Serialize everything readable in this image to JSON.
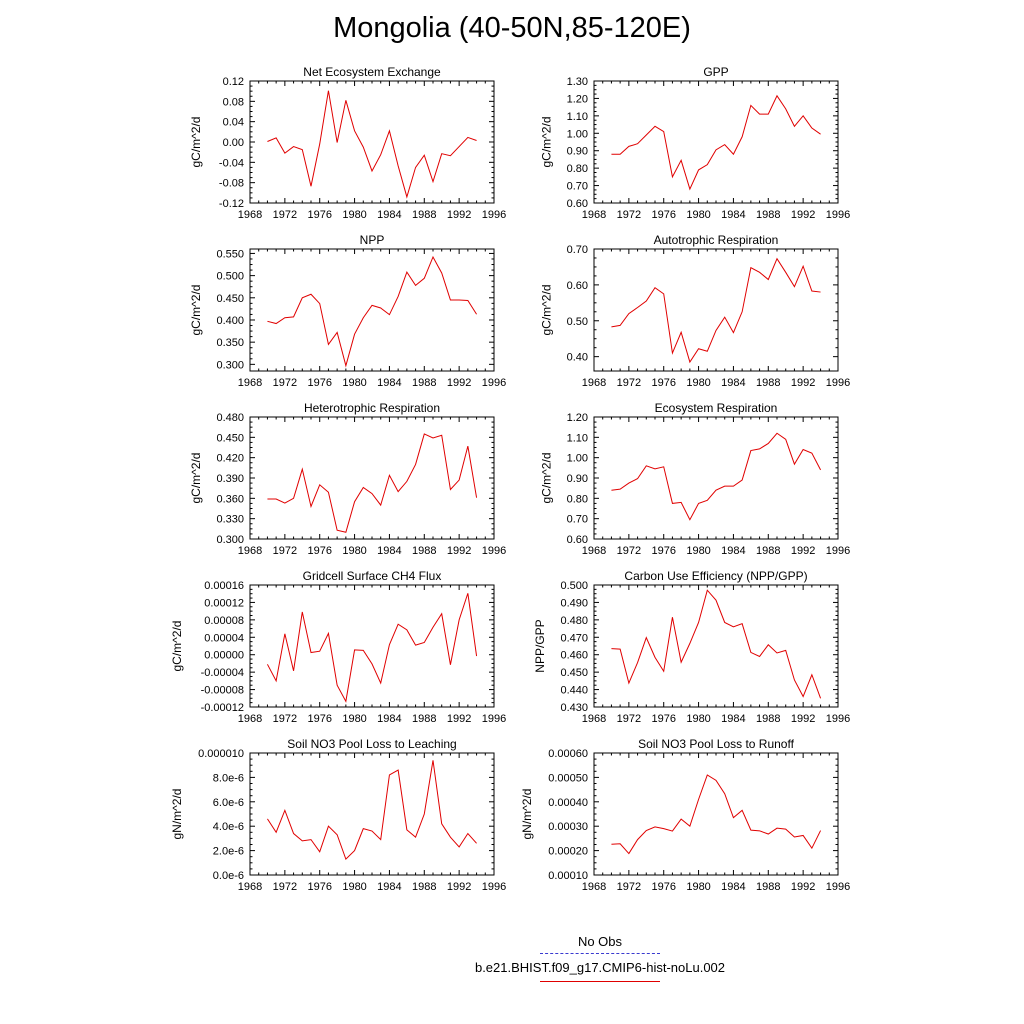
{
  "title": "Mongolia (40-50N,85-120E)",
  "legend": {
    "obs_label": "No Obs",
    "case_label": "b.e21.BHIST.f09_g17.CMIP6-hist-noLu.002",
    "obs_color": "#3a3ad0",
    "case_color": "#e00000"
  },
  "chart_data": [
    {
      "type": "line",
      "title": "Net Ecosystem Exchange",
      "ylabel": "gC/m^2/d",
      "xlim": [
        1968,
        1996
      ],
      "xticks": [
        "1968",
        "1972",
        "1976",
        "1980",
        "1984",
        "1988",
        "1992",
        "1996"
      ],
      "ylim": [
        -0.12,
        0.12
      ],
      "yticks": [
        "-0.12",
        "-0.08",
        "-0.04",
        "0.00",
        "0.04",
        "0.08",
        "0.12"
      ],
      "x": [
        1970,
        1971,
        1972,
        1973,
        1974,
        1975,
        1976,
        1977,
        1978,
        1979,
        1980,
        1981,
        1982,
        1983,
        1984,
        1985,
        1986,
        1987,
        1988,
        1989,
        1990,
        1991,
        1992,
        1993,
        1994
      ],
      "series": [
        {
          "values": [
            0.001,
            0.008,
            -0.022,
            -0.009,
            -0.015,
            -0.087,
            -0.004,
            0.101,
            -0.001,
            0.082,
            0.022,
            -0.01,
            -0.057,
            -0.025,
            0.022,
            -0.047,
            -0.108,
            -0.05,
            -0.026,
            -0.078,
            -0.023,
            -0.027,
            -0.009,
            0.009,
            0.003
          ],
          "color": "#e00000"
        }
      ]
    },
    {
      "type": "line",
      "title": "GPP",
      "ylabel": "gC/m^2/d",
      "xlim": [
        1968,
        1996
      ],
      "xticks": [
        "1968",
        "1972",
        "1976",
        "1980",
        "1984",
        "1988",
        "1992",
        "1996"
      ],
      "ylim": [
        0.6,
        1.3
      ],
      "yticks": [
        "0.60",
        "0.70",
        "0.80",
        "0.90",
        "1.00",
        "1.10",
        "1.20",
        "1.30"
      ],
      "x": [
        1970,
        1971,
        1972,
        1973,
        1974,
        1975,
        1976,
        1977,
        1978,
        1979,
        1980,
        1981,
        1982,
        1983,
        1984,
        1985,
        1986,
        1987,
        1988,
        1989,
        1990,
        1991,
        1992,
        1993,
        1994
      ],
      "series": [
        {
          "values": [
            0.88,
            0.88,
            0.925,
            0.94,
            0.99,
            1.04,
            1.01,
            0.75,
            0.845,
            0.68,
            0.79,
            0.82,
            0.905,
            0.935,
            0.88,
            0.98,
            1.16,
            1.11,
            1.11,
            1.215,
            1.14,
            1.04,
            1.1,
            1.03,
            0.995
          ],
          "color": "#e00000"
        }
      ]
    },
    {
      "type": "line",
      "title": "NPP",
      "ylabel": "gC/m^2/d",
      "xlim": [
        1968,
        1996
      ],
      "xticks": [
        "1968",
        "1972",
        "1976",
        "1980",
        "1984",
        "1988",
        "1992",
        "1996"
      ],
      "ylim": [
        0.285,
        0.56
      ],
      "yticks": [
        "0.300",
        "0.350",
        "0.400",
        "0.450",
        "0.500",
        "0.550"
      ],
      "x": [
        1970,
        1971,
        1972,
        1973,
        1974,
        1975,
        1976,
        1977,
        1978,
        1979,
        1980,
        1981,
        1982,
        1983,
        1984,
        1985,
        1986,
        1987,
        1988,
        1989,
        1990,
        1991,
        1992,
        1993,
        1994
      ],
      "series": [
        {
          "values": [
            0.397,
            0.392,
            0.405,
            0.407,
            0.45,
            0.458,
            0.437,
            0.345,
            0.372,
            0.297,
            0.368,
            0.405,
            0.433,
            0.427,
            0.412,
            0.453,
            0.508,
            0.478,
            0.494,
            0.542,
            0.506,
            0.445,
            0.445,
            0.444,
            0.413
          ],
          "color": "#e00000"
        }
      ]
    },
    {
      "type": "line",
      "title": "Autotrophic Respiration",
      "ylabel": "gC/m^2/d",
      "xlim": [
        1968,
        1996
      ],
      "xticks": [
        "1968",
        "1972",
        "1976",
        "1980",
        "1984",
        "1988",
        "1992",
        "1996"
      ],
      "ylim": [
        0.36,
        0.7
      ],
      "yticks": [
        "0.40",
        "0.50",
        "0.60",
        "0.70"
      ],
      "x": [
        1970,
        1971,
        1972,
        1973,
        1974,
        1975,
        1976,
        1977,
        1978,
        1979,
        1980,
        1981,
        1982,
        1983,
        1984,
        1985,
        1986,
        1987,
        1988,
        1989,
        1990,
        1991,
        1992,
        1993,
        1994
      ],
      "series": [
        {
          "values": [
            0.483,
            0.487,
            0.52,
            0.537,
            0.555,
            0.592,
            0.575,
            0.41,
            0.468,
            0.385,
            0.422,
            0.415,
            0.473,
            0.51,
            0.467,
            0.525,
            0.648,
            0.635,
            0.615,
            0.673,
            0.635,
            0.595,
            0.652,
            0.583,
            0.58
          ],
          "color": "#e00000"
        }
      ]
    },
    {
      "type": "line",
      "title": "Heterotrophic Respiration",
      "ylabel": "gC/m^2/d",
      "xlim": [
        1968,
        1996
      ],
      "xticks": [
        "1968",
        "1972",
        "1976",
        "1980",
        "1984",
        "1988",
        "1992",
        "1996"
      ],
      "ylim": [
        0.3,
        0.48
      ],
      "yticks": [
        "0.300",
        "0.330",
        "0.360",
        "0.390",
        "0.420",
        "0.450",
        "0.480"
      ],
      "x": [
        1970,
        1971,
        1972,
        1973,
        1974,
        1975,
        1976,
        1977,
        1978,
        1979,
        1980,
        1981,
        1982,
        1983,
        1984,
        1985,
        1986,
        1987,
        1988,
        1989,
        1990,
        1991,
        1992,
        1993,
        1994
      ],
      "series": [
        {
          "values": [
            0.359,
            0.359,
            0.353,
            0.36,
            0.403,
            0.348,
            0.38,
            0.369,
            0.313,
            0.31,
            0.355,
            0.376,
            0.367,
            0.35,
            0.394,
            0.37,
            0.385,
            0.41,
            0.455,
            0.449,
            0.453,
            0.373,
            0.387,
            0.437,
            0.361
          ],
          "color": "#e00000"
        }
      ]
    },
    {
      "type": "line",
      "title": "Ecosystem Respiration",
      "ylabel": "gC/m^2/d",
      "xlim": [
        1968,
        1996
      ],
      "xticks": [
        "1968",
        "1972",
        "1976",
        "1980",
        "1984",
        "1988",
        "1992",
        "1996"
      ],
      "ylim": [
        0.6,
        1.2
      ],
      "yticks": [
        "0.60",
        "0.70",
        "0.80",
        "0.90",
        "1.00",
        "1.10",
        "1.20"
      ],
      "x": [
        1970,
        1971,
        1972,
        1973,
        1974,
        1975,
        1976,
        1977,
        1978,
        1979,
        1980,
        1981,
        1982,
        1983,
        1984,
        1985,
        1986,
        1987,
        1988,
        1989,
        1990,
        1991,
        1992,
        1993,
        1994
      ],
      "series": [
        {
          "values": [
            0.84,
            0.845,
            0.875,
            0.897,
            0.96,
            0.945,
            0.955,
            0.775,
            0.78,
            0.695,
            0.775,
            0.79,
            0.84,
            0.86,
            0.86,
            0.89,
            1.035,
            1.043,
            1.07,
            1.12,
            1.09,
            0.968,
            1.04,
            1.022,
            0.94
          ],
          "color": "#e00000"
        }
      ]
    },
    {
      "type": "line",
      "title": "Gridcell Surface CH4 Flux",
      "ylabel": "gC/m^2/d",
      "xlim": [
        1968,
        1996
      ],
      "xticks": [
        "1968",
        "1972",
        "1976",
        "1980",
        "1984",
        "1988",
        "1992",
        "1996"
      ],
      "ylim": [
        -0.00012,
        0.00016
      ],
      "yticks": [
        "-0.00012",
        "-0.00008",
        "-0.00004",
        "0.00000",
        "0.00004",
        "0.00008",
        "0.00012",
        "0.00016"
      ],
      "x": [
        1970,
        1971,
        1972,
        1973,
        1974,
        1975,
        1976,
        1977,
        1978,
        1979,
        1980,
        1981,
        1982,
        1983,
        1984,
        1985,
        1986,
        1987,
        1988,
        1989,
        1990,
        1991,
        1992,
        1993,
        1994
      ],
      "series": [
        {
          "values": [
            -2.2e-05,
            -6e-05,
            4.8e-05,
            -3.7e-05,
            9.8e-05,
            5e-06,
            8e-06,
            4.9e-05,
            -7e-05,
            -0.000107,
            1.1e-05,
            1e-05,
            -2.1e-05,
            -6.5e-05,
            2.3e-05,
            7e-05,
            5.7e-05,
            2.2e-05,
            2.8e-05,
            6.3e-05,
            9.4e-05,
            -2.3e-05,
            8e-05,
            0.000141,
            -3e-06
          ],
          "color": "#e00000"
        }
      ]
    },
    {
      "type": "line",
      "title": "Carbon Use Efficiency (NPP/GPP)",
      "ylabel": "NPP/GPP",
      "xlim": [
        1968,
        1996
      ],
      "xticks": [
        "1968",
        "1972",
        "1976",
        "1980",
        "1984",
        "1988",
        "1992",
        "1996"
      ],
      "ylim": [
        0.43,
        0.5
      ],
      "yticks": [
        "0.430",
        "0.440",
        "0.450",
        "0.460",
        "0.470",
        "0.480",
        "0.490",
        "0.500"
      ],
      "x": [
        1970,
        1971,
        1972,
        1973,
        1974,
        1975,
        1976,
        1977,
        1978,
        1979,
        1980,
        1981,
        1982,
        1983,
        1984,
        1985,
        1986,
        1987,
        1988,
        1989,
        1990,
        1991,
        1992,
        1993,
        1994
      ],
      "series": [
        {
          "values": [
            0.4635,
            0.4632,
            0.4437,
            0.4555,
            0.4698,
            0.4585,
            0.4505,
            0.4815,
            0.4557,
            0.4665,
            0.4785,
            0.497,
            0.4913,
            0.4785,
            0.476,
            0.4778,
            0.4613,
            0.459,
            0.4657,
            0.461,
            0.4625,
            0.4455,
            0.436,
            0.4485,
            0.435
          ],
          "color": "#e00000"
        }
      ]
    },
    {
      "type": "line",
      "title": "Soil NO3 Pool Loss to Leaching",
      "ylabel": "gN/m^2/d",
      "xlim": [
        1968,
        1996
      ],
      "xticks": [
        "1968",
        "1972",
        "1976",
        "1980",
        "1984",
        "1988",
        "1992",
        "1996"
      ],
      "ylim": [
        0,
        1e-05
      ],
      "yticks": [
        "0.0e-6",
        "2.0e-6",
        "4.0e-6",
        "6.0e-6",
        "8.0e-6",
        "0.000010"
      ],
      "x": [
        1970,
        1971,
        1972,
        1973,
        1974,
        1975,
        1976,
        1977,
        1978,
        1979,
        1980,
        1981,
        1982,
        1983,
        1984,
        1985,
        1986,
        1987,
        1988,
        1989,
        1990,
        1991,
        1992,
        1993,
        1994
      ],
      "series": [
        {
          "values": [
            4.6e-06,
            3.5e-06,
            5.3e-06,
            3.4e-06,
            2.8e-06,
            2.9e-06,
            1.9e-06,
            4e-06,
            3.3e-06,
            1.3e-06,
            2e-06,
            3.8e-06,
            3.6e-06,
            2.9e-06,
            8.2e-06,
            8.6e-06,
            3.7e-06,
            3.1e-06,
            5e-06,
            9.4e-06,
            4.2e-06,
            3.1e-06,
            2.3e-06,
            3.4e-06,
            2.6e-06
          ],
          "color": "#e00000"
        }
      ]
    },
    {
      "type": "line",
      "title": "Soil NO3 Pool Loss to Runoff",
      "ylabel": "gN/m^2/d",
      "xlim": [
        1968,
        1996
      ],
      "xticks": [
        "1968",
        "1972",
        "1976",
        "1980",
        "1984",
        "1988",
        "1992",
        "1996"
      ],
      "ylim": [
        0.0001,
        0.0006
      ],
      "yticks": [
        "0.00010",
        "0.00020",
        "0.00030",
        "0.00040",
        "0.00050",
        "0.00060"
      ],
      "x": [
        1970,
        1971,
        1972,
        1973,
        1974,
        1975,
        1976,
        1977,
        1978,
        1979,
        1980,
        1981,
        1982,
        1983,
        1984,
        1985,
        1986,
        1987,
        1988,
        1989,
        1990,
        1991,
        1992,
        1993,
        1994
      ],
      "series": [
        {
          "values": [
            0.000226,
            0.000228,
            0.000188,
            0.000245,
            0.000282,
            0.000297,
            0.00029,
            0.00028,
            0.000329,
            0.0003,
            0.00041,
            0.00051,
            0.000488,
            0.000433,
            0.000335,
            0.000365,
            0.000284,
            0.000281,
            0.000268,
            0.000292,
            0.000288,
            0.000256,
            0.000262,
            0.00021,
            0.000282
          ],
          "color": "#e00000"
        }
      ]
    }
  ]
}
